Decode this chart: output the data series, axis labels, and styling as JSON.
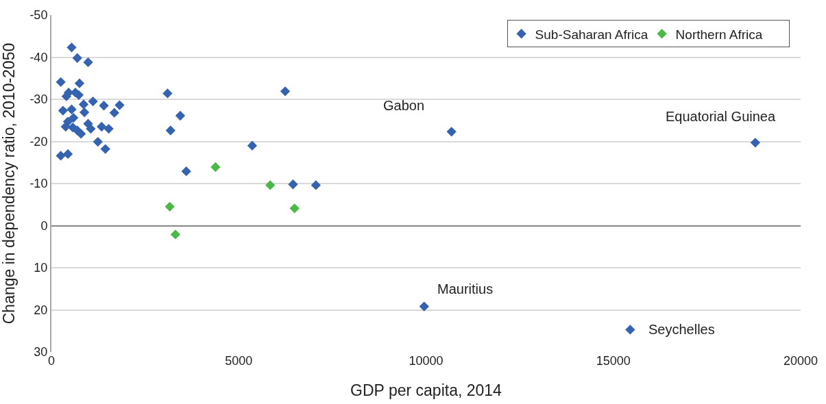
{
  "chart_data": {
    "type": "scatter",
    "xlabel": "GDP per capita, 2014",
    "ylabel": "Change in dependency ratio, 2010-2050",
    "xlim": [
      0,
      20000
    ],
    "xticks": [
      0,
      5000,
      10000,
      15000,
      20000
    ],
    "ylim": [
      30,
      -50
    ],
    "yticks": [
      -50,
      -40,
      -30,
      -20,
      -10,
      0,
      10,
      20,
      30
    ],
    "grid": "y",
    "legend": "top right",
    "marker": "diamond",
    "series": [
      {
        "name": "Sub-Saharan Africa",
        "color": "#3563b0",
        "x": [
          540,
          690,
          980,
          250,
          750,
          460,
          640,
          400,
          730,
          1110,
          860,
          1400,
          1820,
          310,
          540,
          880,
          1680,
          590,
          440,
          380,
          570,
          980,
          1050,
          1340,
          1530,
          690,
          790,
          1240,
          1440,
          250,
          440,
          3100,
          6240,
          3440,
          3180,
          5360,
          3600,
          6450,
          7060,
          10680,
          18790,
          9950,
          15450
        ],
        "values": [
          -42.3,
          -39.8,
          -38.8,
          -34.1,
          -33.8,
          -31.6,
          -31.6,
          -30.7,
          -31.0,
          -29.5,
          -28.8,
          -28.5,
          -28.6,
          -27.3,
          -27.6,
          -26.9,
          -26.8,
          -25.6,
          -24.7,
          -23.5,
          -23.3,
          -24.2,
          -23.0,
          -23.5,
          -23.0,
          -22.6,
          -21.8,
          -19.9,
          -18.2,
          -16.6,
          -17.0,
          -31.4,
          -31.9,
          -26.1,
          -22.6,
          -19.0,
          -12.9,
          -9.8,
          -9.6,
          -22.3,
          -19.7,
          19.2,
          24.7
        ]
      },
      {
        "name": "Northern Africa",
        "color": "#4cb848",
        "x": [
          4380,
          5840,
          3160,
          6490,
          3310
        ],
        "values": [
          -13.9,
          -9.6,
          -4.5,
          -4.1,
          2.1
        ]
      }
    ],
    "annotations": [
      {
        "text": "Gabon",
        "x": 10680,
        "y": -22.3
      },
      {
        "text": "Equatorial Guinea",
        "x": 18790,
        "y": -19.7
      },
      {
        "text": "Mauritius",
        "x": 9950,
        "y": 19.2
      },
      {
        "text": "Seychelles",
        "x": 15450,
        "y": 24.7
      }
    ]
  }
}
